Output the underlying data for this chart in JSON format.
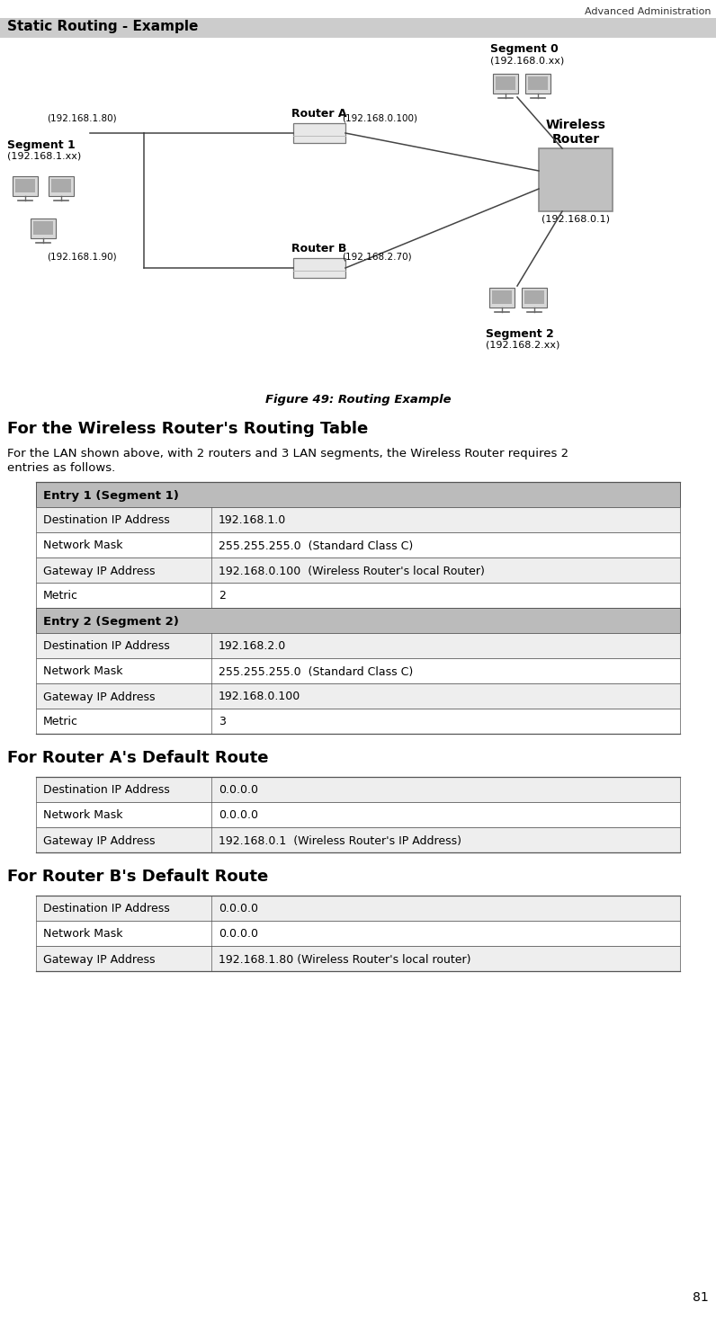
{
  "page_header": "Advanced Administration",
  "section_title": "Static Routing - Example",
  "figure_caption": "Figure 49: Routing Example",
  "wireless_router_heading": "For the Wireless Router's Routing Table",
  "wireless_router_intro_1": "For the LAN shown above, with 2 routers and 3 LAN segments, the Wireless Router requires 2",
  "wireless_router_intro_2": "entries as follows.",
  "router_a_heading": "For Router A's Default Route",
  "router_b_heading": "For Router B's Default Route",
  "page_number": "81",
  "wireless_table_sections": [
    {
      "header": "Entry 1 (Segment 1)",
      "rows": [
        [
          "Destination IP Address",
          "192.168.1.0"
        ],
        [
          "Network Mask",
          "255.255.255.0  (Standard Class C)"
        ],
        [
          "Gateway IP Address",
          "192.168.0.100  (Wireless Router's local Router)"
        ],
        [
          "Metric",
          "2"
        ]
      ]
    },
    {
      "header": "Entry 2 (Segment 2)",
      "rows": [
        [
          "Destination IP Address",
          "192.168.2.0"
        ],
        [
          "Network Mask",
          "255.255.255.0  (Standard Class C)"
        ],
        [
          "Gateway IP Address",
          "192.168.0.100"
        ],
        [
          "Metric",
          "3"
        ]
      ]
    }
  ],
  "router_a_rows": [
    [
      "Destination IP Address",
      "0.0.0.0"
    ],
    [
      "Network Mask",
      "0.0.0.0"
    ],
    [
      "Gateway IP Address",
      "192.168.0.1  (Wireless Router's IP Address)"
    ]
  ],
  "router_b_rows": [
    [
      "Destination IP Address",
      "0.0.0.0"
    ],
    [
      "Network Mask",
      "0.0.0.0"
    ],
    [
      "Gateway IP Address",
      "192.168.1.80 (Wireless Router's local router)"
    ]
  ],
  "nd_segment0_label": "Segment 0",
  "nd_segment0_sub": "(192.168.0.xx)",
  "nd_segment1_label": "Segment 1",
  "nd_segment1_sub": "(192.168.1.xx)",
  "nd_segment2_label": "Segment 2",
  "nd_segment2_sub": "(192.168.2.xx)",
  "nd_router_a": "Router A",
  "nd_router_b": "Router B",
  "nd_wireless": "Wireless\nRouter",
  "nd_wireless_ip": "(192.168.0.1)",
  "nd_addr_1_80": "(192.168.1.80)",
  "nd_addr_0_100": "(192.168.0.100)",
  "nd_addr_1_90": "(192.168.1.90)",
  "nd_addr_2_70": "(192.168.2.70)",
  "header_bg": "#cccccc",
  "row_bg_alt": "#eeeeee",
  "row_bg_white": "#ffffff",
  "table_header_bg": "#bbbbbb",
  "line_color": "#555555",
  "diagram_line_color": "#444444"
}
